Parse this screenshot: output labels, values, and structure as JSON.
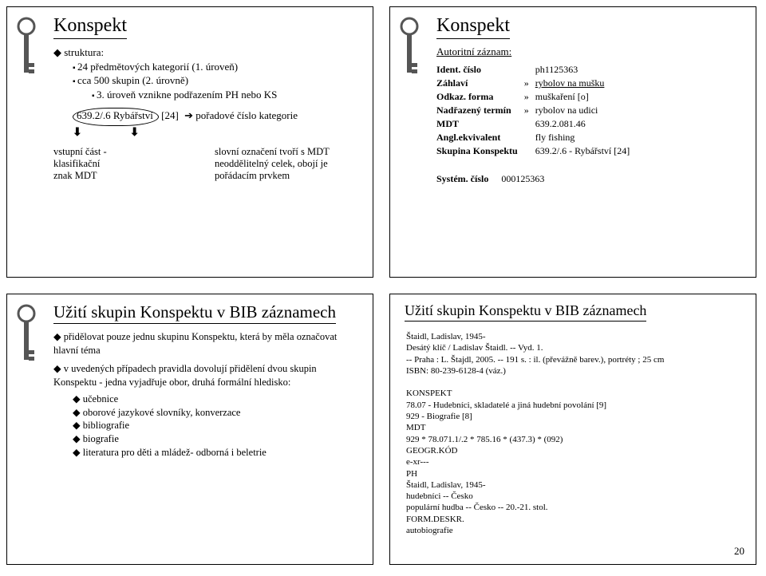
{
  "tl": {
    "title": "Konspekt",
    "line1_label": "struktura:",
    "line2": "24 předmětových kategorií (1. úroveň)",
    "line3": "cca 500 skupin (2. úrovně)",
    "line4": "3. úroveň vznikne podřazením PH nebo KS",
    "example_circle": "639.2/.6 Rybářství",
    "example_bracket": "[24]",
    "example_rest": "pořadové číslo kategorie",
    "col1_l1": "vstupní část -",
    "col1_l2": "klasifikační",
    "col1_l3": "znak MDT",
    "col2_l1": "slovní označení tvoří s MDT",
    "col2_l2": "neoddělitelný celek, obojí je",
    "col2_l3": "pořádacím prvkem"
  },
  "tr": {
    "title": "Konspekt",
    "sub": "Autoritní záznam:",
    "rows": [
      [
        "Ident. číslo",
        "",
        "ph1125363"
      ],
      [
        "Záhlaví",
        "»",
        "rybolov na mušku"
      ],
      [
        "Odkaz. forma",
        "»",
        "muškaření [o]"
      ],
      [
        "Nadřazený termín",
        "»",
        "rybolov na udici"
      ],
      [
        "MDT",
        "",
        "639.2.081.46"
      ],
      [
        "Angl.ekvivalent",
        "",
        "fly fishing"
      ],
      [
        "Skupina Konspektu",
        "",
        "639.2/.6 - Rybářství [24]"
      ]
    ],
    "sys_label": "Systém. číslo",
    "sys_val": "000125363"
  },
  "bl": {
    "title": "Užití skupin Konspektu v BIB záznamech",
    "b1": "přidělovat pouze jednu skupinu Konspektu, která by měla označovat hlavní téma",
    "b2": "v uvedených případech pravidla dovolují přidělení dvou skupin Konspektu - jedna vyjadřuje obor, druhá formální hledisko:",
    "s1": "učebnice",
    "s2": "oborové jazykové slovníky, konverzace",
    "s3": "bibliografie",
    "s4": "biografie",
    "s5": "literatura pro děti a mládež- odborná i beletrie"
  },
  "br": {
    "title": "Užití skupin Konspektu v BIB záznamech",
    "rec": [
      "Štaidl, Ladislav, 1945-",
      "Desátý klíč / Ladislav Štaidl. -- Vyd. 1.",
      "-- Praha : L. Štajdl, 2005. -- 191 s. : il. (převážně barev.), portréty ; 25 cm",
      "ISBN: 80-239-6128-4 (váz.)",
      "",
      "KONSPEKT",
      "78.07 - Hudebníci, skladatelé a jiná hudební povolání [9]",
      "929 - Biografie [8]",
      "MDT",
      "929 * 78.071.1/.2 * 785.16 * (437.3) * (092)",
      "GEOGR.KÓD",
      "e-xr---",
      "PH",
      "Štaidl, Ladislav, 1945-",
      "hudebníci -- Česko",
      "populární hudba -- Česko -- 20.-21. stol.",
      "FORM.DESKR.",
      "autobiografie"
    ],
    "page": "20"
  }
}
